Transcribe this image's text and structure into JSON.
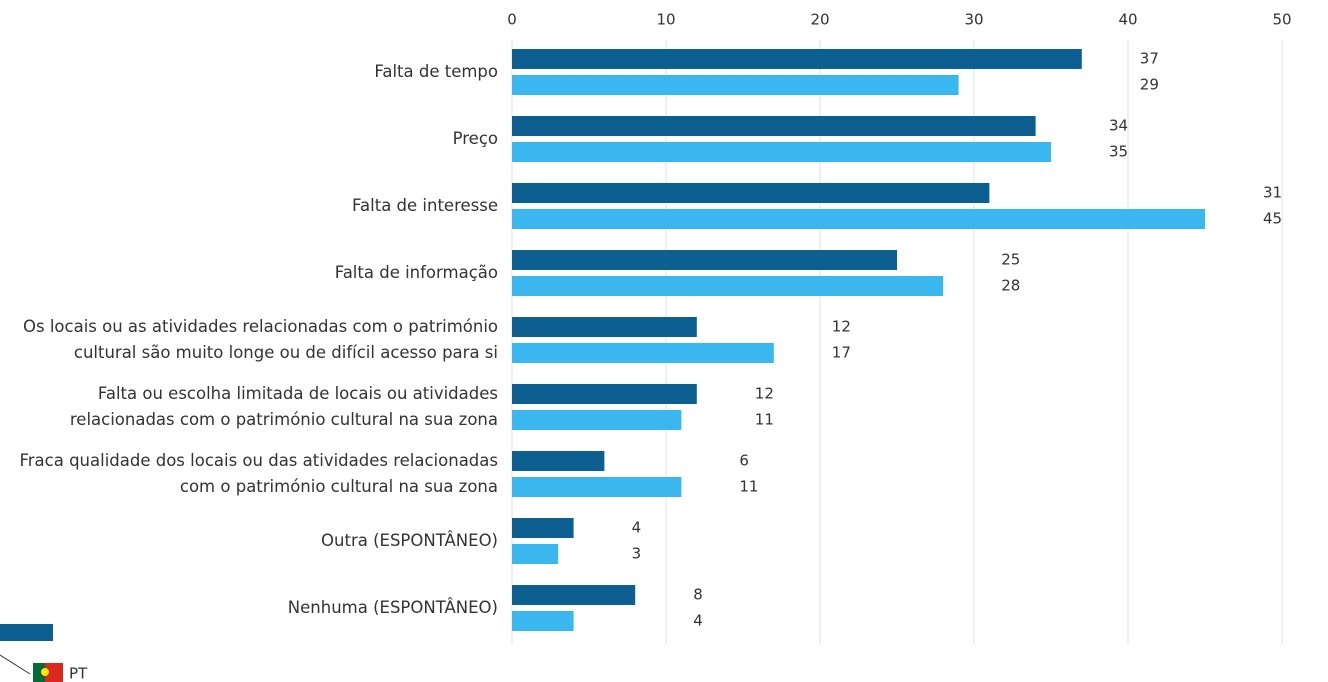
{
  "chart_data": {
    "type": "hbar",
    "categories": [
      "Falta de tempo",
      "Preço",
      "Falta de interesse",
      "Falta de informação",
      "Os locais ou as atividades relacionadas com o património cultural são muito longe ou de difícil acesso para si",
      "Falta ou escolha limitada de locais ou atividades relacionadas com o património cultural na sua zona",
      "Fraca qualidade dos locais ou das atividades relacionadas com o património cultural na sua zona",
      "Outra (ESPONTÂNEO)",
      "Nenhuma (ESPONTÂNEO)"
    ],
    "series": [
      {
        "color": "#0e5f91",
        "values": [
          37,
          34,
          31,
          25,
          12,
          12,
          6,
          4,
          8
        ]
      },
      {
        "name": "PT",
        "color": "#3bb7ef",
        "values": [
          29,
          35,
          45,
          28,
          17,
          11,
          11,
          3,
          4
        ]
      }
    ],
    "xlim": [
      0,
      50
    ],
    "xticks": [
      0,
      10,
      20,
      30,
      40,
      50
    ],
    "grid": true
  }
}
